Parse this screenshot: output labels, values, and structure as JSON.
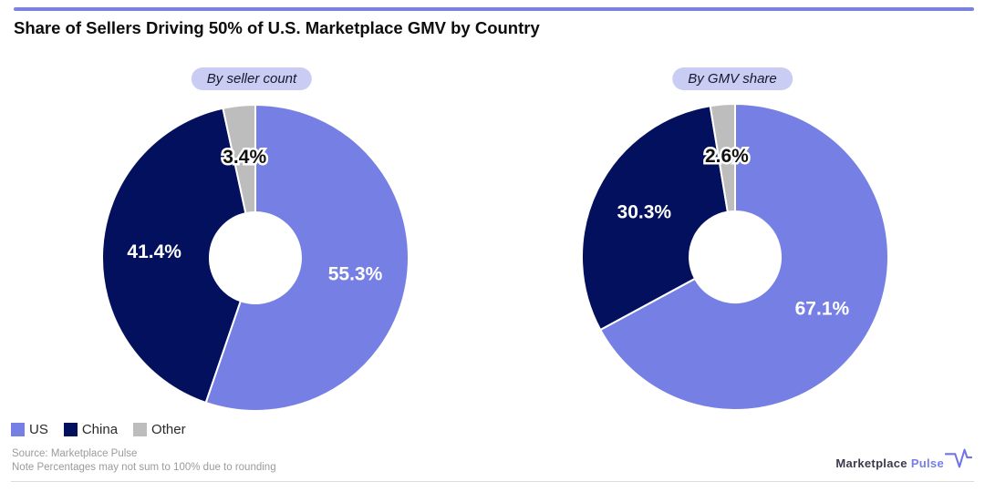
{
  "header": {
    "title": "Share of Sellers Driving 50% of U.S. Marketplace GMV by Country"
  },
  "colors": {
    "accent": "#7B82DD",
    "badge_bg": "#C9CDF3",
    "rule_bottom": "#DCDCDC"
  },
  "palette": {
    "US": "#7680E4",
    "China": "#03105E",
    "Other": "#BDBDBD"
  },
  "chart_data": [
    {
      "type": "pie",
      "subtype": "donut",
      "badge": "By seller count",
      "categories": [
        "US",
        "China",
        "Other"
      ],
      "values": [
        55.3,
        41.4,
        3.4
      ],
      "labels": [
        "55.3%",
        "41.4%",
        "3.4%"
      ],
      "label_colors": [
        "#ffffff",
        "#ffffff",
        "#111111"
      ],
      "label_halo": [
        false,
        false,
        true
      ],
      "start_angle": "top",
      "direction": "clockwise"
    },
    {
      "type": "pie",
      "subtype": "donut",
      "badge": "By GMV share",
      "categories": [
        "US",
        "China",
        "Other"
      ],
      "values": [
        67.1,
        30.3,
        2.6
      ],
      "labels": [
        "67.1%",
        "30.3%",
        "2.6%"
      ],
      "label_colors": [
        "#ffffff",
        "#ffffff",
        "#111111"
      ],
      "label_halo": [
        false,
        false,
        true
      ],
      "start_angle": "top",
      "direction": "clockwise"
    }
  ],
  "legend": {
    "items": [
      {
        "label": "US",
        "color": "#7680E4"
      },
      {
        "label": "China",
        "color": "#03105E"
      },
      {
        "label": "Other",
        "color": "#BDBDBD"
      }
    ]
  },
  "footer": {
    "source": "Source: Marketplace Pulse",
    "note": "Note Percentages may not sum to 100% due to rounding"
  },
  "logo": {
    "brand": "Marketplace",
    "accent": "Pulse",
    "icon": "pulse-line-icon"
  }
}
